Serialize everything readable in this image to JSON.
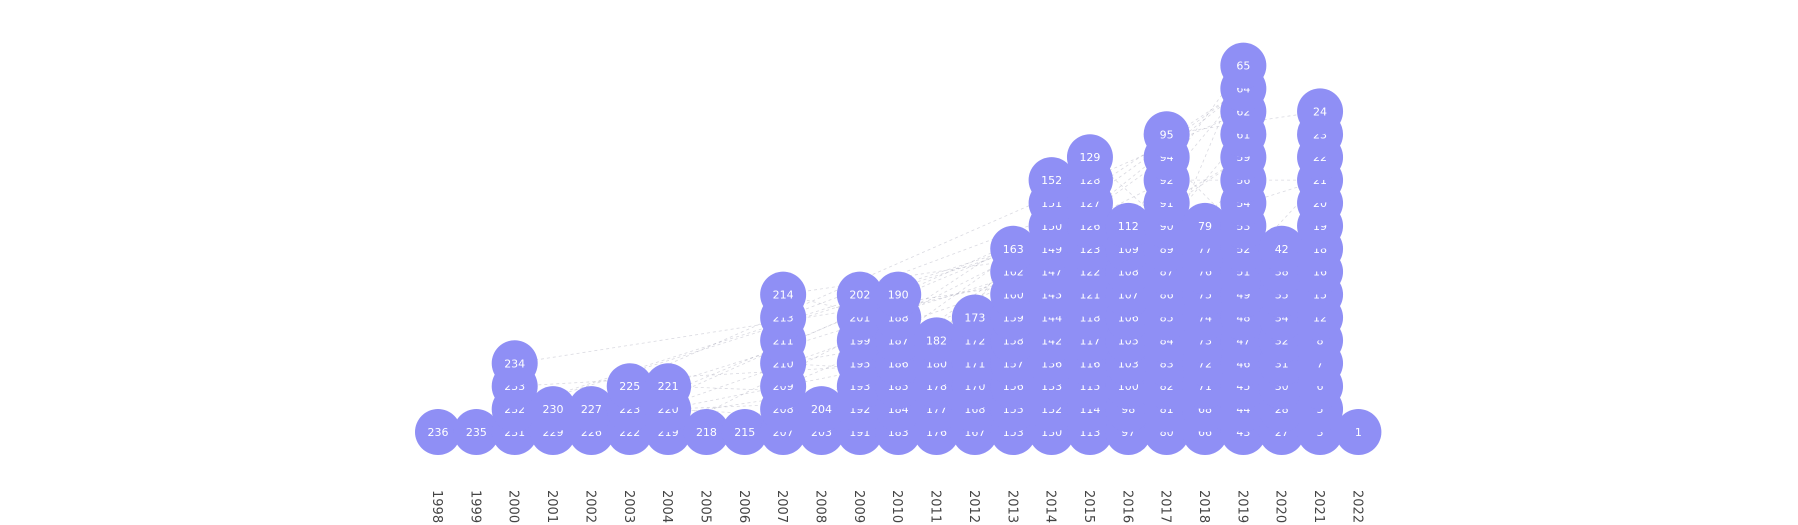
{
  "chart_data": {
    "type": "scatter",
    "x_axis": {
      "tick_labels": [
        "1998",
        "1999",
        "2000",
        "2001",
        "2002",
        "2003",
        "2004",
        "2005",
        "2006",
        "2007",
        "2008",
        "2009",
        "2010",
        "2011",
        "2012",
        "2013",
        "2014",
        "2015",
        "2016",
        "2017",
        "2018",
        "2019",
        "2020",
        "2021",
        "2022"
      ]
    },
    "node_color": "#8f8ff5",
    "node_label_color": "#ffffff",
    "edge_color": "#555577",
    "columns": [
      {
        "year": "1998",
        "nodes": [
          "236"
        ]
      },
      {
        "year": "1999",
        "nodes": [
          "235"
        ]
      },
      {
        "year": "2000",
        "nodes": [
          "231",
          "232",
          "233",
          "234"
        ]
      },
      {
        "year": "2001",
        "nodes": [
          "229",
          "230"
        ]
      },
      {
        "year": "2002",
        "nodes": [
          "226",
          "227"
        ]
      },
      {
        "year": "2003",
        "nodes": [
          "222",
          "223",
          "225"
        ]
      },
      {
        "year": "2004",
        "nodes": [
          "219",
          "220",
          "221"
        ]
      },
      {
        "year": "2005",
        "nodes": [
          "218"
        ]
      },
      {
        "year": "2006",
        "nodes": [
          "215"
        ]
      },
      {
        "year": "2007",
        "nodes": [
          "207",
          "208",
          "209",
          "210",
          "211",
          "213",
          "214"
        ]
      },
      {
        "year": "2008",
        "nodes": [
          "203",
          "204"
        ]
      },
      {
        "year": "2009",
        "nodes": [
          "191",
          "192",
          "193",
          "195",
          "199",
          "201",
          "202"
        ]
      },
      {
        "year": "2010",
        "nodes": [
          "183",
          "184",
          "185",
          "186",
          "187",
          "188",
          "190"
        ]
      },
      {
        "year": "2011",
        "nodes": [
          "176",
          "177",
          "178",
          "180",
          "182"
        ]
      },
      {
        "year": "2012",
        "nodes": [
          "167",
          "168",
          "170",
          "171",
          "172",
          "173"
        ]
      },
      {
        "year": "2013",
        "nodes": [
          "153",
          "155",
          "156",
          "157",
          "158",
          "159",
          "160",
          "162",
          "163"
        ]
      },
      {
        "year": "2014",
        "nodes": [
          "130",
          "132",
          "133",
          "136",
          "142",
          "144",
          "145",
          "147",
          "149",
          "150",
          "151",
          "152"
        ]
      },
      {
        "year": "2015",
        "nodes": [
          "113",
          "114",
          "115",
          "116",
          "117",
          "118",
          "121",
          "122",
          "123",
          "126",
          "127",
          "128",
          "129"
        ]
      },
      {
        "year": "2016",
        "nodes": [
          "97",
          "98",
          "100",
          "103",
          "105",
          "106",
          "107",
          "108",
          "109",
          "112"
        ]
      },
      {
        "year": "2017",
        "nodes": [
          "80",
          "81",
          "82",
          "83",
          "84",
          "85",
          "86",
          "87",
          "89",
          "90",
          "91",
          "92",
          "94",
          "95"
        ]
      },
      {
        "year": "2018",
        "nodes": [
          "66",
          "68",
          "71",
          "72",
          "73",
          "74",
          "75",
          "76",
          "77",
          "79"
        ]
      },
      {
        "year": "2019",
        "nodes": [
          "43",
          "44",
          "45",
          "46",
          "47",
          "48",
          "49",
          "51",
          "52",
          "53",
          "54",
          "56",
          "59",
          "61",
          "62",
          "64",
          "65"
        ]
      },
      {
        "year": "2020",
        "nodes": [
          "27",
          "28",
          "30",
          "31",
          "32",
          "34",
          "35",
          "38",
          "42"
        ]
      },
      {
        "year": "2021",
        "nodes": [
          "3",
          "5",
          "6",
          "7",
          "8",
          "12",
          "15",
          "16",
          "18",
          "19",
          "20",
          "21",
          "22",
          "23",
          "24"
        ]
      },
      {
        "year": "2022",
        "nodes": [
          "1"
        ]
      }
    ]
  }
}
